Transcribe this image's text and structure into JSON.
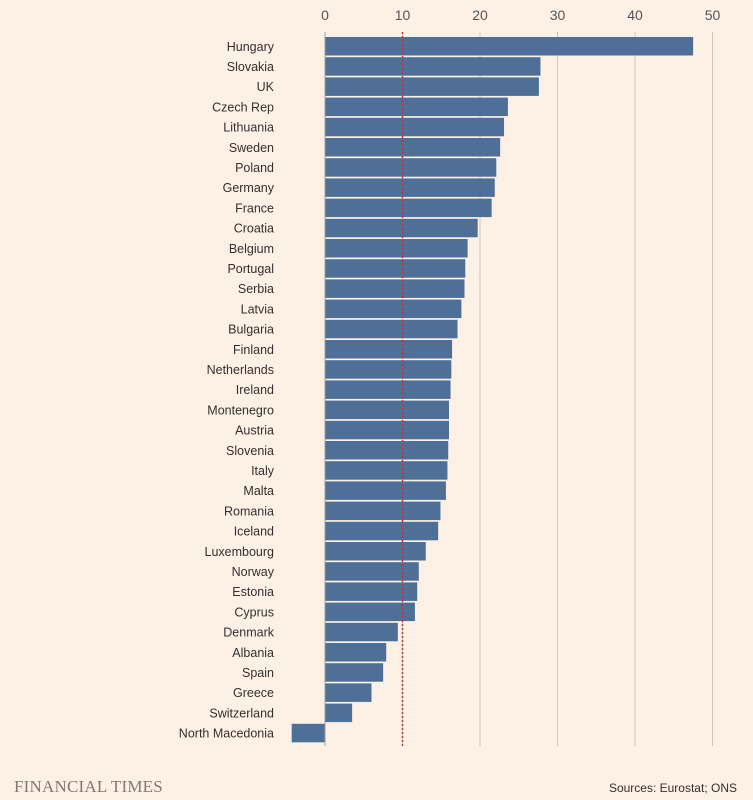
{
  "chart_data": {
    "type": "bar",
    "orientation": "horizontal",
    "categories": [
      "Hungary",
      "Slovakia",
      "UK",
      "Czech Rep",
      "Lithuania",
      "Sweden",
      "Poland",
      "Germany",
      "France",
      "Croatia",
      "Belgium",
      "Portugal",
      "Serbia",
      "Latvia",
      "Bulgaria",
      "Finland",
      "Netherlands",
      "Ireland",
      "Montenegro",
      "Austria",
      "Slovenia",
      "Italy",
      "Malta",
      "Romania",
      "Iceland",
      "Luxembourg",
      "Norway",
      "Estonia",
      "Cyprus",
      "Denmark",
      "Albania",
      "Spain",
      "Greece",
      "Switzerland",
      "North Macedonia"
    ],
    "values": [
      47.5,
      27.8,
      27.6,
      23.6,
      23.1,
      22.6,
      22.1,
      21.9,
      21.5,
      19.7,
      18.4,
      18.1,
      18.0,
      17.6,
      17.1,
      16.4,
      16.3,
      16.2,
      16.0,
      16.0,
      15.9,
      15.8,
      15.6,
      14.9,
      14.6,
      13.0,
      12.1,
      11.9,
      11.6,
      9.4,
      7.9,
      7.5,
      6.0,
      3.5,
      -4.3
    ],
    "xticks": [
      0,
      10,
      20,
      30,
      40,
      50
    ],
    "xlim": [
      -4.5,
      50
    ],
    "reference_line": 10,
    "grid": true,
    "colors": {
      "bar": "#4e6f98",
      "reference_line": "#b53a3a",
      "grid": "#cfc5ba",
      "background": "#fdf1e5"
    }
  },
  "footer": {
    "brand": "FINANCIAL TIMES",
    "source": "Sources: Eurostat; ONS"
  }
}
